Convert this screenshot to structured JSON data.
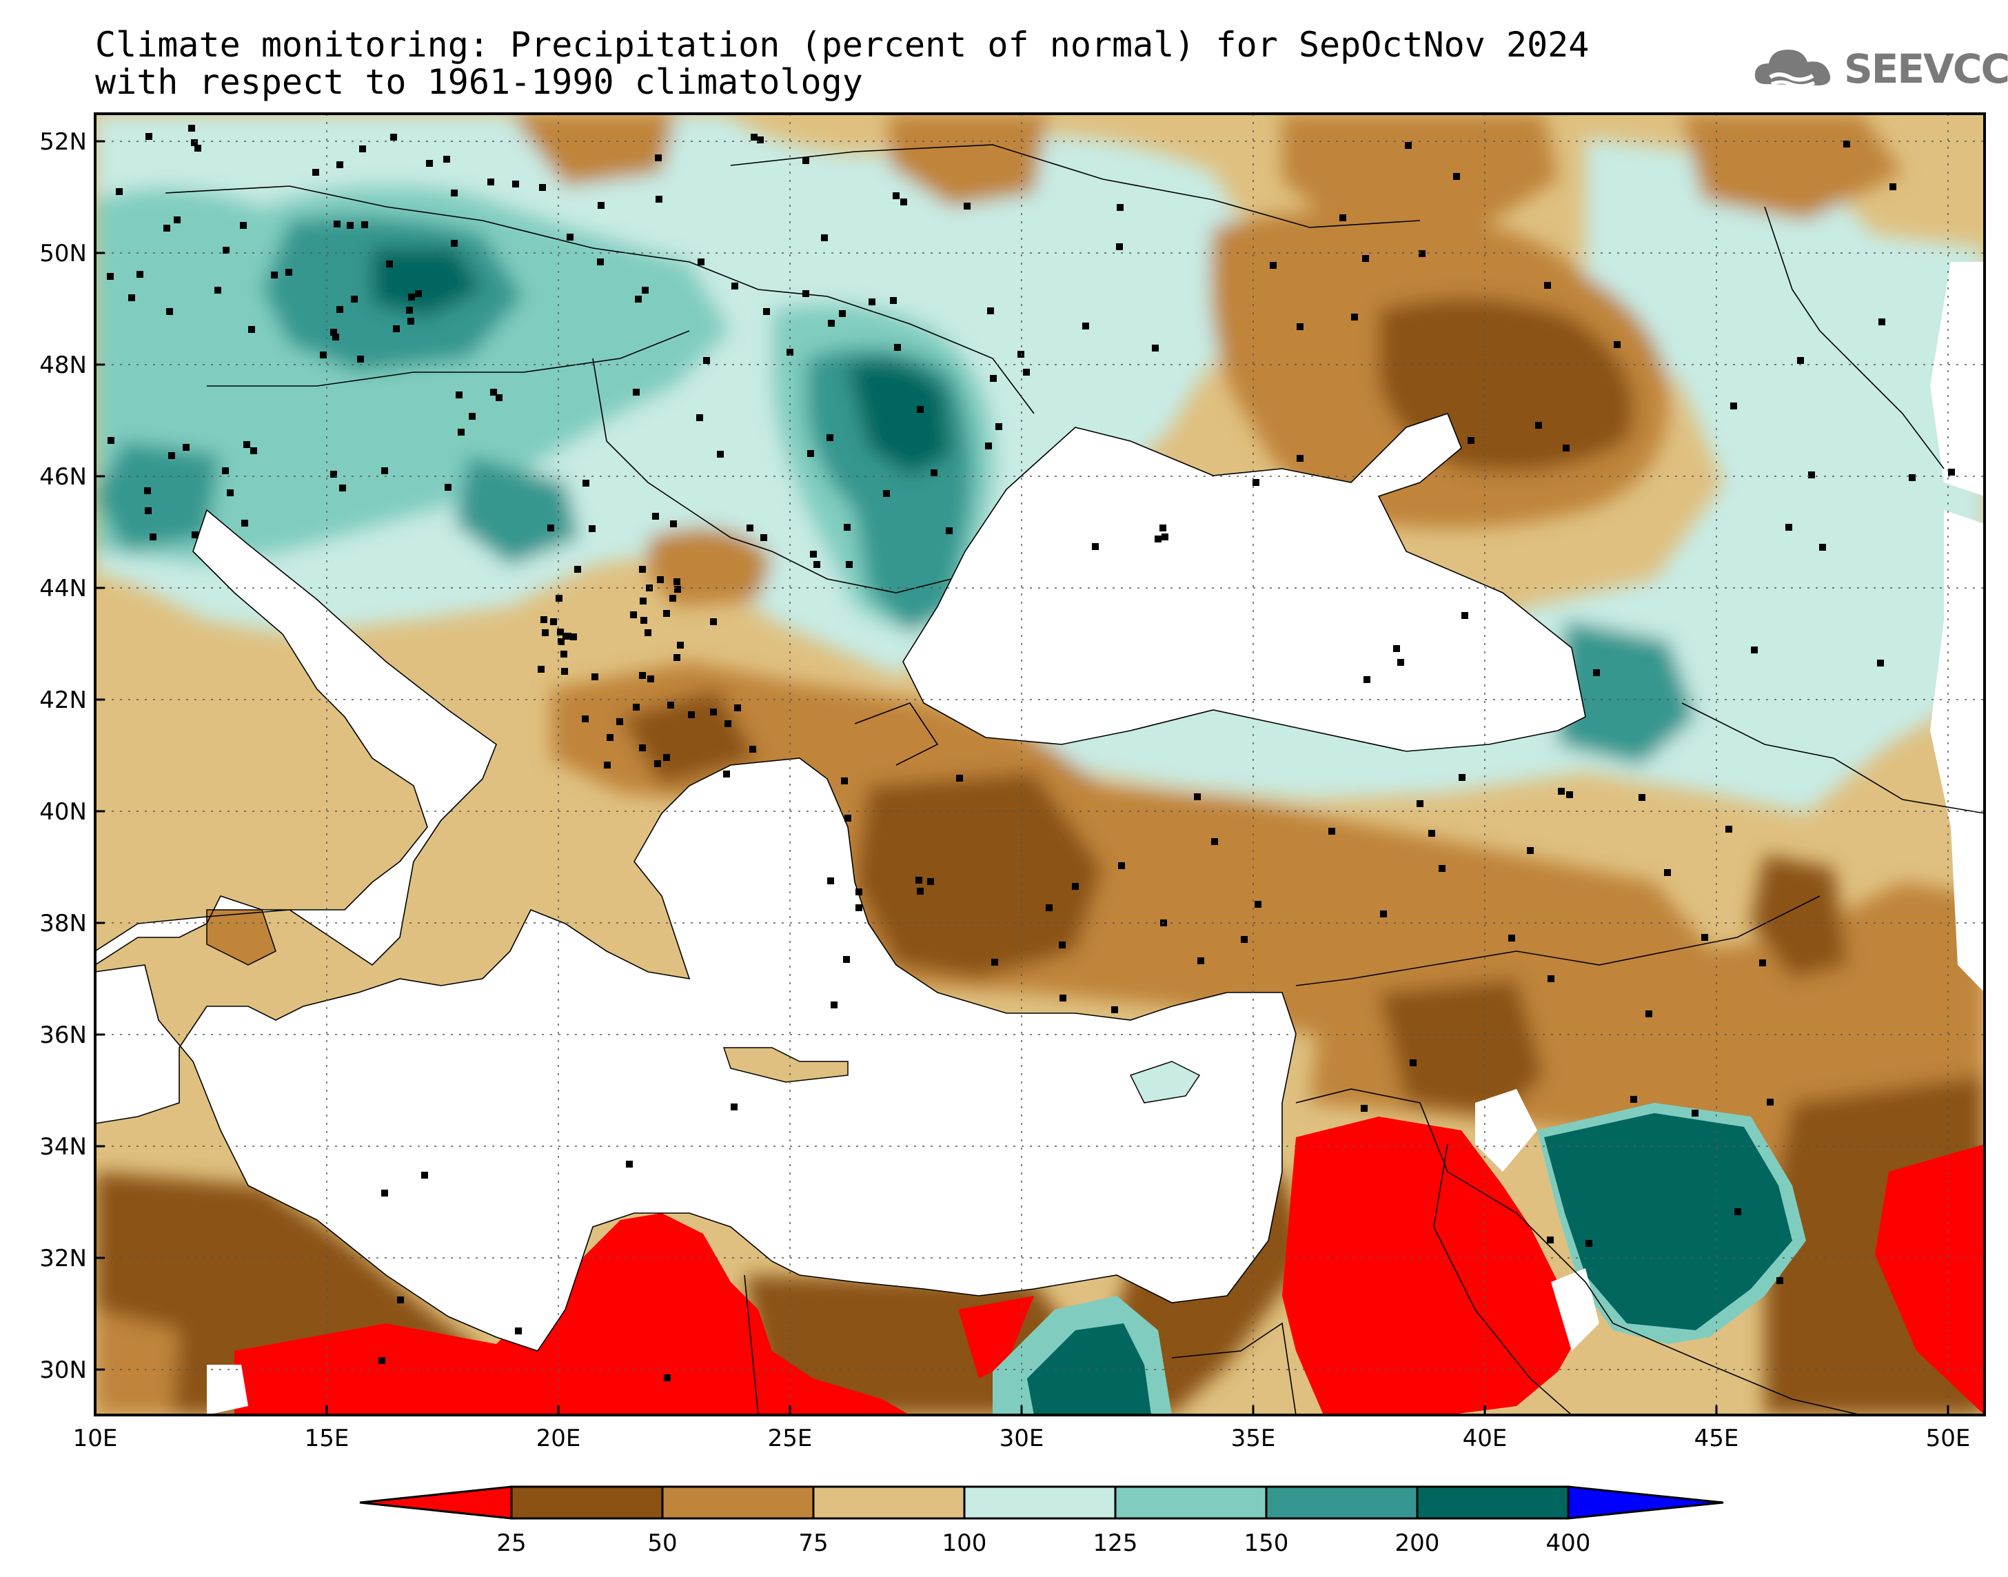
{
  "title_line1": "Climate monitoring: Precipitation (percent of normal) for SepOctNov 2024",
  "title_line2": "with respect to 1961-1990 climatology",
  "logo_text": "SEEVCCC",
  "x_axis_labels": [
    "10E",
    "15E",
    "20E",
    "25E",
    "30E",
    "35E",
    "40E",
    "45E",
    "50E"
  ],
  "y_axis_labels": [
    "52N",
    "50N",
    "48N",
    "46N",
    "44N",
    "42N",
    "40N",
    "38N",
    "36N",
    "34N",
    "32N",
    "30N"
  ],
  "colorbar": {
    "boundaries": [
      "25",
      "50",
      "75",
      "100",
      "125",
      "150",
      "200",
      "400"
    ],
    "colors": [
      "#ff0000",
      "#8b5214",
      "#c0843a",
      "#dfc080",
      "#c8ebe4",
      "#80cdc0",
      "#35978f",
      "#01665e",
      "#0000ff"
    ]
  }
}
